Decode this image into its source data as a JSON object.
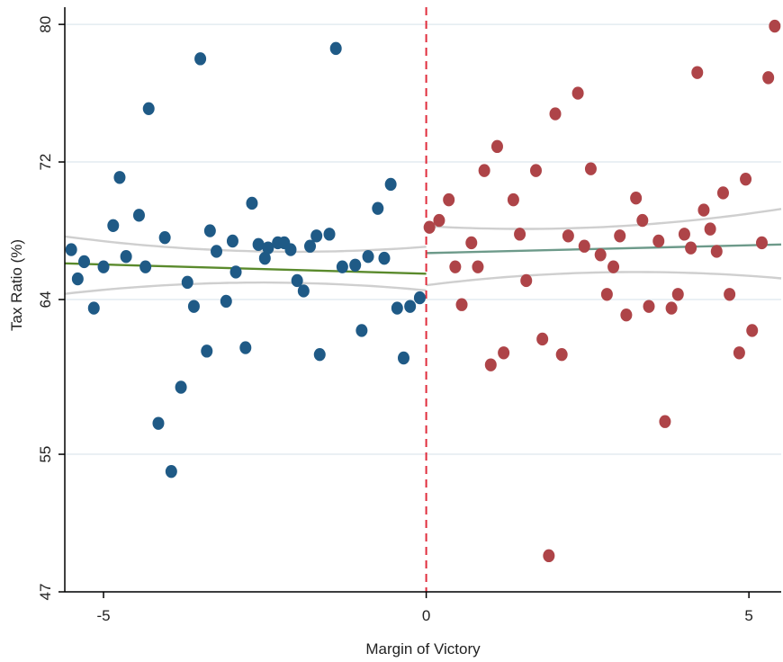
{
  "chart_data": {
    "type": "scatter",
    "xlabel": "Margin of Victory",
    "ylabel": "Tax Ratio (%)",
    "xlim": [
      -5.6,
      5.5
    ],
    "ylim": [
      47,
      81
    ],
    "xticks": [
      -5,
      0,
      5
    ],
    "xtick_labels": [
      "-5",
      "0",
      "5"
    ],
    "yticks": [
      47,
      55,
      64,
      72,
      80
    ],
    "ytick_labels": [
      "47",
      "55",
      "64",
      "72",
      "80"
    ],
    "grid": "horizontal",
    "cutoff": 0,
    "colors": {
      "left_points": "#1f5a86",
      "right_points": "#ae4448",
      "left_fit": "#5a8a2c",
      "right_fit": "#6d9a8a",
      "confidence_band": "#cfcfcf",
      "cutoff_line": "#e02d3c",
      "grid": "#e3ecf0",
      "axis": "#000000"
    },
    "series": [
      {
        "side": "left",
        "points": [
          [
            -5.5,
            66.9
          ],
          [
            -5.4,
            65.2
          ],
          [
            -5.3,
            66.2
          ],
          [
            -5.15,
            63.5
          ],
          [
            -5.0,
            65.9
          ],
          [
            -4.85,
            68.3
          ],
          [
            -4.75,
            71.1
          ],
          [
            -4.65,
            66.5
          ],
          [
            -4.45,
            68.9
          ],
          [
            -4.35,
            65.9
          ],
          [
            -4.3,
            75.1
          ],
          [
            -4.15,
            56.8
          ],
          [
            -4.05,
            67.6
          ],
          [
            -3.95,
            54.0
          ],
          [
            -3.8,
            58.9
          ],
          [
            -3.7,
            65.0
          ],
          [
            -3.6,
            63.6
          ],
          [
            -3.5,
            78.0
          ],
          [
            -3.4,
            61.0
          ],
          [
            -3.35,
            68.0
          ],
          [
            -3.25,
            66.8
          ],
          [
            -3.1,
            63.9
          ],
          [
            -3.0,
            67.4
          ],
          [
            -2.95,
            65.6
          ],
          [
            -2.8,
            61.2
          ],
          [
            -2.7,
            69.6
          ],
          [
            -2.6,
            67.2
          ],
          [
            -2.5,
            66.4
          ],
          [
            -2.45,
            67.0
          ],
          [
            -2.3,
            67.3
          ],
          [
            -2.2,
            67.3
          ],
          [
            -2.1,
            66.9
          ],
          [
            -2.0,
            65.1
          ],
          [
            -1.9,
            64.5
          ],
          [
            -1.8,
            67.1
          ],
          [
            -1.7,
            67.7
          ],
          [
            -1.65,
            60.8
          ],
          [
            -1.5,
            67.8
          ],
          [
            -1.4,
            78.6
          ],
          [
            -1.3,
            65.9
          ],
          [
            -1.1,
            66.0
          ],
          [
            -1.0,
            62.2
          ],
          [
            -0.9,
            66.5
          ],
          [
            -0.75,
            69.3
          ],
          [
            -0.65,
            66.4
          ],
          [
            -0.55,
            70.7
          ],
          [
            -0.45,
            63.5
          ],
          [
            -0.35,
            60.6
          ],
          [
            -0.25,
            63.6
          ],
          [
            -0.1,
            64.1
          ]
        ]
      },
      {
        "side": "right",
        "points": [
          [
            0.05,
            68.2
          ],
          [
            0.2,
            68.6
          ],
          [
            0.35,
            69.8
          ],
          [
            0.45,
            65.9
          ],
          [
            0.55,
            63.7
          ],
          [
            0.7,
            67.3
          ],
          [
            0.8,
            65.9
          ],
          [
            0.9,
            71.5
          ],
          [
            1.0,
            60.2
          ],
          [
            1.1,
            72.9
          ],
          [
            1.2,
            60.9
          ],
          [
            1.35,
            69.8
          ],
          [
            1.45,
            67.8
          ],
          [
            1.55,
            65.1
          ],
          [
            1.7,
            71.5
          ],
          [
            1.8,
            61.7
          ],
          [
            1.9,
            49.1
          ],
          [
            2.0,
            74.8
          ],
          [
            2.1,
            60.8
          ],
          [
            2.2,
            67.7
          ],
          [
            2.35,
            76.0
          ],
          [
            2.45,
            67.1
          ],
          [
            2.55,
            71.6
          ],
          [
            2.7,
            66.6
          ],
          [
            2.8,
            64.3
          ],
          [
            2.9,
            65.9
          ],
          [
            3.0,
            67.7
          ],
          [
            3.1,
            63.1
          ],
          [
            3.25,
            69.9
          ],
          [
            3.35,
            68.6
          ],
          [
            3.45,
            63.6
          ],
          [
            3.6,
            67.4
          ],
          [
            3.7,
            56.9
          ],
          [
            3.8,
            63.5
          ],
          [
            3.9,
            64.3
          ],
          [
            4.0,
            67.8
          ],
          [
            4.1,
            67.0
          ],
          [
            4.2,
            77.2
          ],
          [
            4.3,
            69.2
          ],
          [
            4.4,
            68.1
          ],
          [
            4.5,
            66.8
          ],
          [
            4.6,
            70.2
          ],
          [
            4.7,
            64.3
          ],
          [
            4.85,
            60.9
          ],
          [
            4.95,
            71.0
          ],
          [
            5.05,
            62.2
          ],
          [
            5.2,
            67.3
          ],
          [
            5.3,
            76.9
          ],
          [
            5.4,
            79.9
          ]
        ]
      }
    ],
    "fit_lines": [
      {
        "side": "left",
        "x": [
          -5.6,
          0
        ],
        "fit": [
          66.1,
          65.5
        ],
        "upper": [
          67.3,
          66.7
        ],
        "lower": [
          64.7,
          64.9
        ]
      },
      {
        "side": "right",
        "x": [
          0,
          5.5
        ],
        "fit": [
          66.7,
          67.2
        ],
        "upper": [
          67.9,
          68.9
        ],
        "lower": [
          65.2,
          65.6
        ]
      }
    ]
  }
}
